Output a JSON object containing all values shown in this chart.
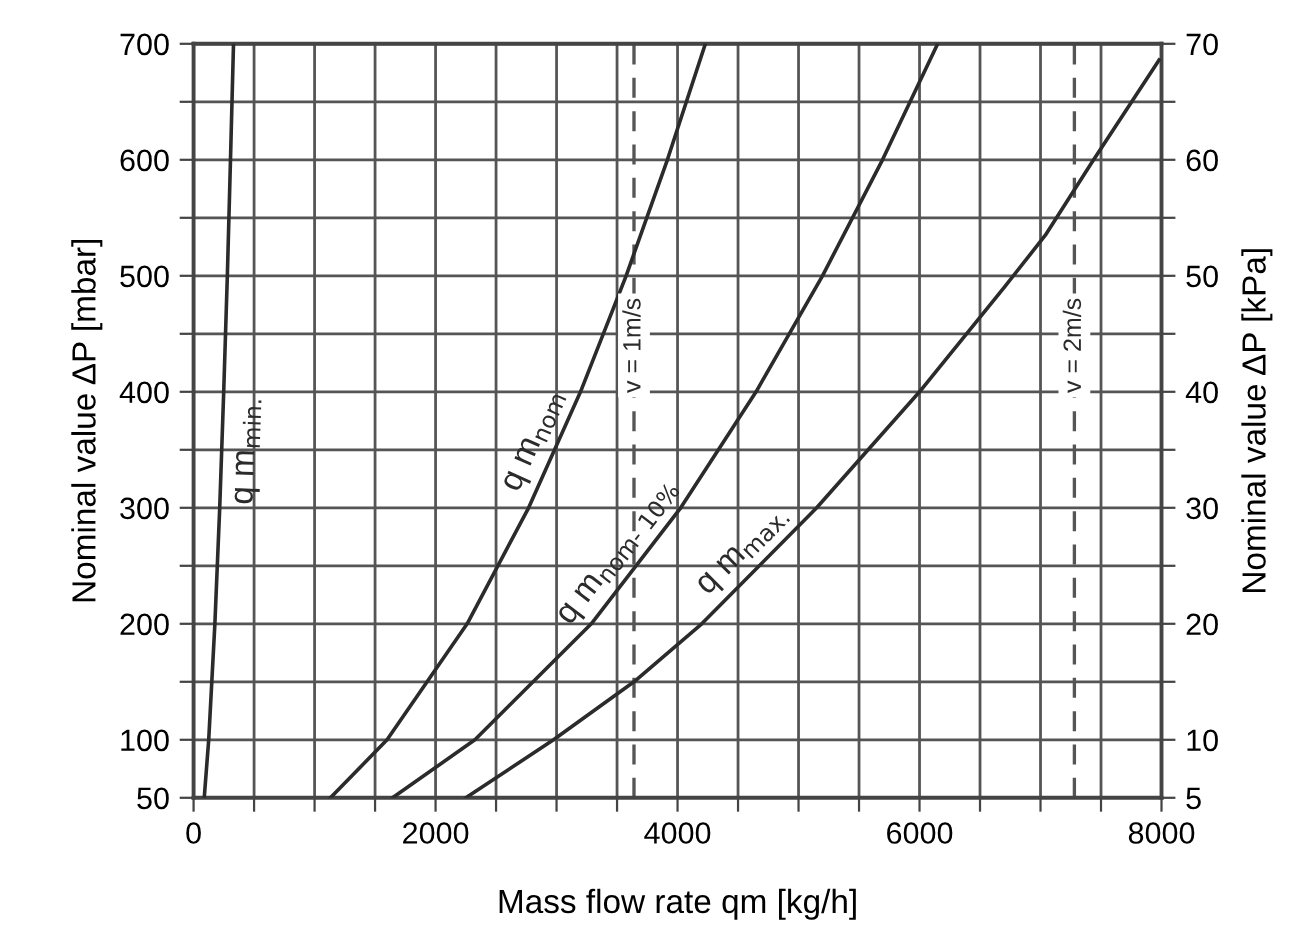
{
  "chart_data": {
    "type": "line",
    "xlabel": "Mass flow rate qm [kg/h]",
    "ylabel": "Nominal value ΔP [mbar]",
    "y2label": "Nominal value ΔP [kPa]",
    "series": [
      {
        "name": "q m$_{min.}$",
        "color": "#2b2b2b",
        "x": [
          88,
          125,
          176,
          216,
          249,
          279,
          305,
          330
        ],
        "values": [
          50,
          100,
          200,
          300,
          400,
          500,
          600,
          700
        ]
      },
      {
        "name": "q m$_{nom}$",
        "color": "#2b2b2b",
        "x": [
          1131,
          1599,
          2261,
          2769,
          3198,
          3575,
          3916,
          4230
        ],
        "values": [
          50,
          100,
          200,
          300,
          400,
          500,
          600,
          700
        ]
      },
      {
        "name": "q m$_{nom- 10%}$",
        "color": "#2b2b2b",
        "x": [
          1644,
          2325,
          3287,
          4026,
          4649,
          5198,
          5694,
          6150
        ],
        "values": [
          50,
          100,
          200,
          300,
          400,
          500,
          600,
          700
        ]
      },
      {
        "name": "q m$_{max.}$",
        "color": "#2b2b2b",
        "x": [
          2250,
          2975,
          3640,
          4200,
          5150,
          6000,
          6700,
          7040,
          7420,
          7980
        ],
        "values": [
          50,
          100,
          150,
          200,
          300,
          400,
          490,
          535,
          597,
          686
        ]
      }
    ],
    "ref_lines": [
      {
        "axis": "x",
        "value": 3640,
        "line_style": "dashed"
      },
      {
        "axis": "x",
        "value": 7280,
        "line_style": "dashed"
      }
    ],
    "annotations": [
      "v = 1m/s",
      "v = 2m/s"
    ],
    "xlim": [
      0,
      8000
    ],
    "xticks": [
      0,
      {
        "value": 500,
        "label": null
      },
      {
        "value": 1000,
        "label": null
      },
      {
        "value": 1500,
        "label": null
      },
      2000,
      {
        "value": 2500,
        "label": null
      },
      {
        "value": 3000,
        "label": null
      },
      {
        "value": 3500,
        "label": null
      },
      4000,
      {
        "value": 4500,
        "label": null
      },
      {
        "value": 5000,
        "label": null
      },
      {
        "value": 5500,
        "label": null
      },
      6000,
      {
        "value": 6500,
        "label": null
      },
      {
        "value": 7000,
        "label": null
      },
      {
        "value": 7500,
        "label": null
      },
      8000
    ],
    "ylim": [
      50,
      700
    ],
    "yticks": [
      50,
      100,
      {
        "value": 150,
        "label": null
      },
      200,
      {
        "value": 250,
        "label": null
      },
      300,
      {
        "value": 350,
        "label": null
      },
      400,
      {
        "value": 450,
        "label": null
      },
      500,
      {
        "value": 550,
        "label": null
      },
      600,
      {
        "value": 650,
        "label": null
      },
      700
    ],
    "y2lim": [
      5,
      70
    ],
    "y2ticks": [
      5,
      10,
      {
        "value": 15,
        "label": null
      },
      20,
      {
        "value": 25,
        "label": null
      },
      30,
      {
        "value": 35,
        "label": null
      },
      40,
      {
        "value": 45,
        "label": null
      },
      50,
      {
        "value": 55,
        "label": null
      },
      60,
      {
        "value": 65,
        "label": null
      },
      70
    ],
    "grid": true,
    "legend": false,
    "marker": "none",
    "line_style": "solid"
  }
}
